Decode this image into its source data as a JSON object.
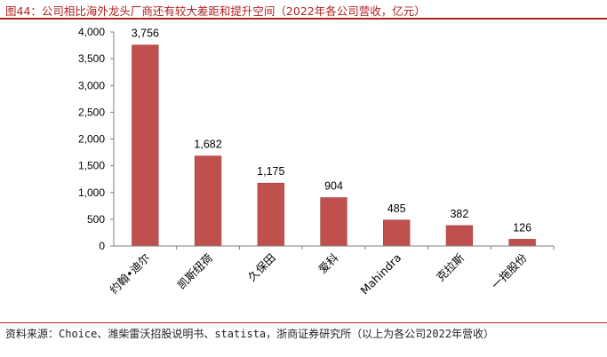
{
  "figure_title": "图44：公司相比海外龙头厂商还有较大差距和提升空间（2022年各公司营收，亿元）",
  "source": "资料来源：Choice、潍柴雷沃招股说明书、statista，浙商证券研究所（以上为各公司2022年营收）",
  "chart_data": {
    "type": "bar",
    "categories": [
      "约翰•迪尔",
      "凯斯纽荷",
      "久保田",
      "爱科",
      "Mahindra",
      "克拉斯",
      "一拖股份"
    ],
    "values": [
      3756,
      1682,
      1175,
      904,
      485,
      382,
      126
    ],
    "value_labels": [
      "3,756",
      "1,682",
      "1,175",
      "904",
      "485",
      "382",
      "126"
    ],
    "ylim": [
      0,
      4000
    ],
    "yticks": [
      0,
      500,
      1000,
      1500,
      2000,
      2500,
      3000,
      3500,
      4000
    ],
    "ytick_labels": [
      "0",
      "500",
      "1,000",
      "1,500",
      "2,000",
      "2,500",
      "3,000",
      "3,500",
      "4,000"
    ],
    "bar_color": "#c0504d",
    "grid": false,
    "legend": "none"
  },
  "colors": {
    "accent": "#b22222"
  }
}
